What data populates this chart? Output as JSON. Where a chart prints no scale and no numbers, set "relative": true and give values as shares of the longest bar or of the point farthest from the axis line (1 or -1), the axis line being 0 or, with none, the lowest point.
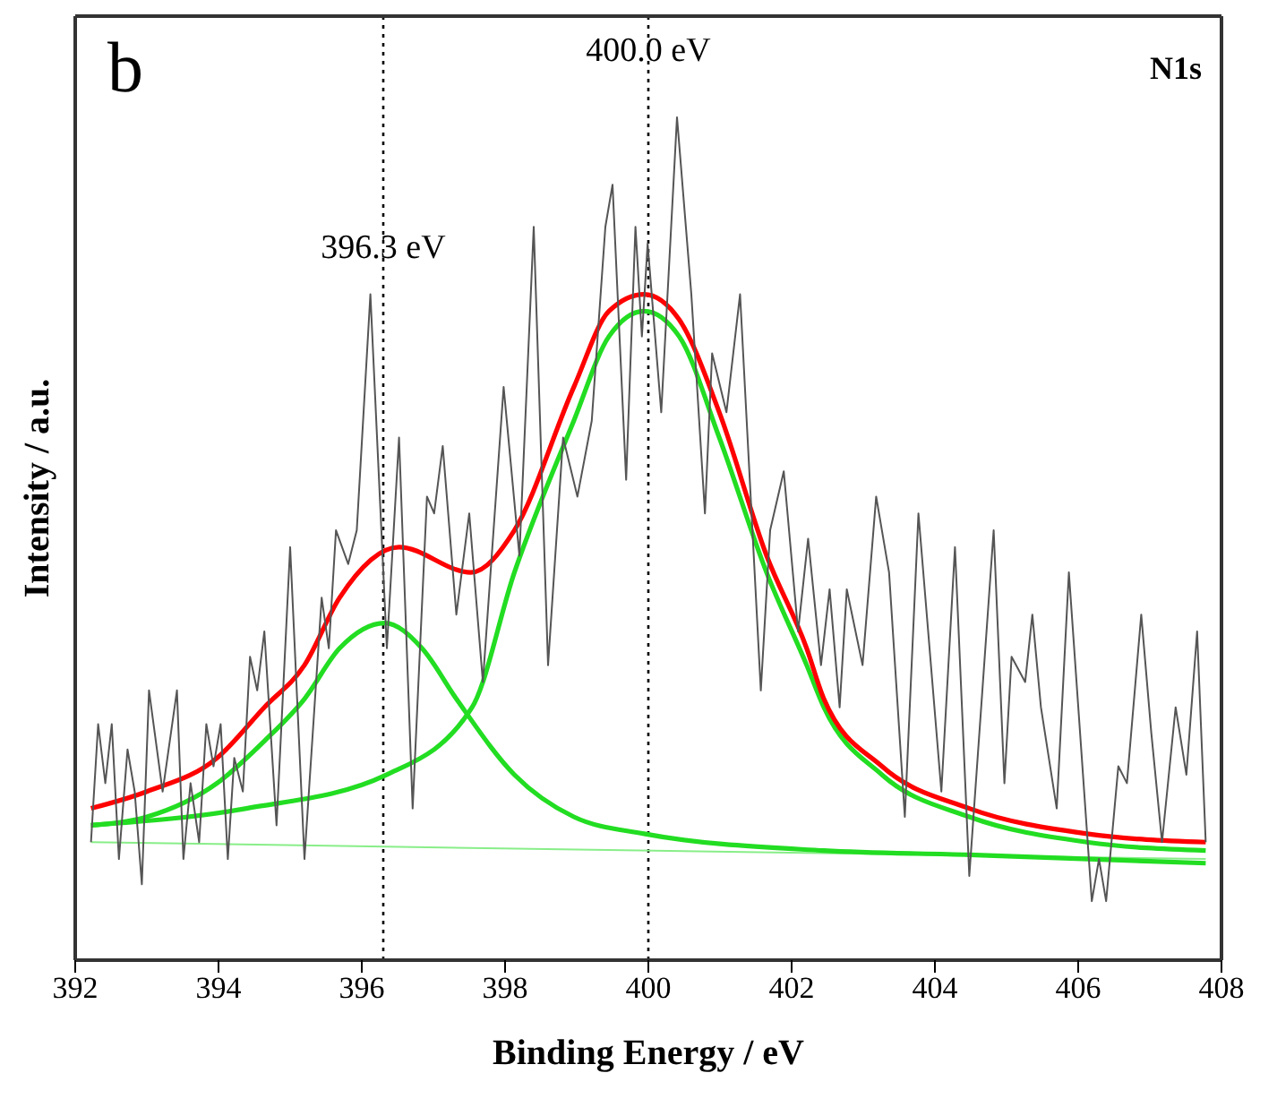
{
  "chart_data": {
    "type": "line",
    "relative": true,
    "xlabel": "Binding Energy / eV",
    "ylabel": "Intensity / a.u.",
    "annotations": [
      "b",
      "N1s"
    ],
    "xlim": [
      392,
      408
    ],
    "xticks": [
      392,
      394,
      396,
      398,
      400,
      402,
      404,
      406,
      408
    ],
    "marker": "none",
    "ref_lines": [
      {
        "axis": "x",
        "value": 396.3,
        "label": "396.3 eV",
        "line_style": "dotted",
        "color": "#000000"
      },
      {
        "axis": "x",
        "value": 400.0,
        "label": "400.0 eV",
        "line_style": "dotted",
        "color": "#000000"
      }
    ],
    "series": [
      {
        "color": "#555555",
        "x": [
          392.22,
          392.32,
          392.42,
          392.51,
          392.61,
          392.73,
          392.83,
          392.93,
          393.03,
          393.22,
          393.42,
          393.51,
          393.61,
          393.73,
          393.83,
          393.93,
          394.03,
          394.13,
          394.22,
          394.34,
          394.44,
          394.54,
          394.64,
          394.81,
          395.0,
          395.2,
          395.44,
          395.54,
          395.64,
          395.81,
          395.93,
          396.12,
          396.35,
          396.52,
          396.71,
          396.91,
          397.01,
          397.13,
          397.32,
          397.5,
          397.69,
          397.98,
          398.2,
          398.4,
          398.6,
          398.81,
          399.01,
          399.21,
          399.4,
          399.5,
          399.69,
          399.82,
          399.91,
          399.99,
          400.18,
          400.4,
          400.6,
          400.79,
          400.89,
          401.09,
          401.28,
          401.57,
          401.7,
          401.89,
          402.09,
          402.23,
          402.41,
          402.53,
          402.67,
          402.77,
          402.99,
          403.18,
          403.36,
          403.58,
          403.77,
          404.09,
          404.28,
          404.48,
          404.82,
          404.97,
          405.07,
          405.26,
          405.36,
          405.48,
          405.7,
          405.87,
          406.19,
          406.29,
          406.39,
          406.56,
          406.68,
          406.88,
          407.02,
          407.17,
          407.36,
          407.51,
          407.66,
          407.78
        ],
        "values": [
          0.14,
          0.28,
          0.21,
          0.28,
          0.12,
          0.25,
          0.2,
          0.09,
          0.32,
          0.2,
          0.32,
          0.12,
          0.21,
          0.14,
          0.28,
          0.23,
          0.28,
          0.12,
          0.24,
          0.2,
          0.36,
          0.32,
          0.39,
          0.16,
          0.49,
          0.12,
          0.43,
          0.37,
          0.51,
          0.47,
          0.51,
          0.79,
          0.37,
          0.62,
          0.18,
          0.55,
          0.53,
          0.61,
          0.41,
          0.53,
          0.33,
          0.68,
          0.48,
          0.87,
          0.35,
          0.62,
          0.55,
          0.64,
          0.87,
          0.92,
          0.57,
          0.87,
          0.74,
          0.85,
          0.65,
          1.0,
          0.79,
          0.53,
          0.72,
          0.65,
          0.79,
          0.32,
          0.51,
          0.58,
          0.39,
          0.5,
          0.35,
          0.44,
          0.3,
          0.44,
          0.35,
          0.55,
          0.46,
          0.17,
          0.53,
          0.2,
          0.49,
          0.1,
          0.51,
          0.21,
          0.36,
          0.33,
          0.41,
          0.3,
          0.18,
          0.46,
          0.07,
          0.12,
          0.07,
          0.23,
          0.21,
          0.41,
          0.27,
          0.14,
          0.3,
          0.22,
          0.39,
          0.14
        ]
      },
      {
        "color": "#88ee88",
        "x": [
          392.22,
          407.78
        ],
        "values": [
          0.14,
          0.12
        ]
      },
      {
        "color": "#22dd22",
        "x": [
          392.22,
          393.0,
          393.98,
          394.64,
          395.2,
          395.69,
          396.32,
          396.84,
          397.32,
          398.13,
          398.96,
          399.94,
          402.45,
          404.48,
          407.78
        ],
        "values": [
          0.16,
          0.17,
          0.21,
          0.26,
          0.31,
          0.37,
          0.4,
          0.37,
          0.31,
          0.22,
          0.17,
          0.15,
          0.13,
          0.125,
          0.115
        ]
      },
      {
        "color": "#22dd22",
        "x": [
          392.22,
          394.39,
          396.35,
          397.54,
          398.13,
          398.96,
          399.45,
          399.94,
          400.43,
          400.99,
          401.65,
          402.21,
          402.45,
          403.26,
          404.48,
          406.12,
          407.78
        ],
        "values": [
          0.16,
          0.18,
          0.22,
          0.3,
          0.46,
          0.64,
          0.74,
          0.77,
          0.74,
          0.62,
          0.46,
          0.35,
          0.3,
          0.22,
          0.17,
          0.14,
          0.13
        ]
      },
      {
        "color": "#ff0000",
        "x": [
          392.22,
          393.0,
          393.98,
          394.64,
          395.2,
          395.69,
          396.52,
          397.52,
          398.13,
          398.96,
          399.45,
          399.94,
          400.43,
          400.99,
          401.65,
          402.21,
          402.45,
          403.26,
          404.48,
          406.12,
          407.78
        ],
        "values": [
          0.18,
          0.2,
          0.24,
          0.3,
          0.35,
          0.43,
          0.49,
          0.46,
          0.51,
          0.68,
          0.77,
          0.79,
          0.76,
          0.65,
          0.48,
          0.37,
          0.31,
          0.23,
          0.18,
          0.15,
          0.14
        ]
      }
    ]
  }
}
